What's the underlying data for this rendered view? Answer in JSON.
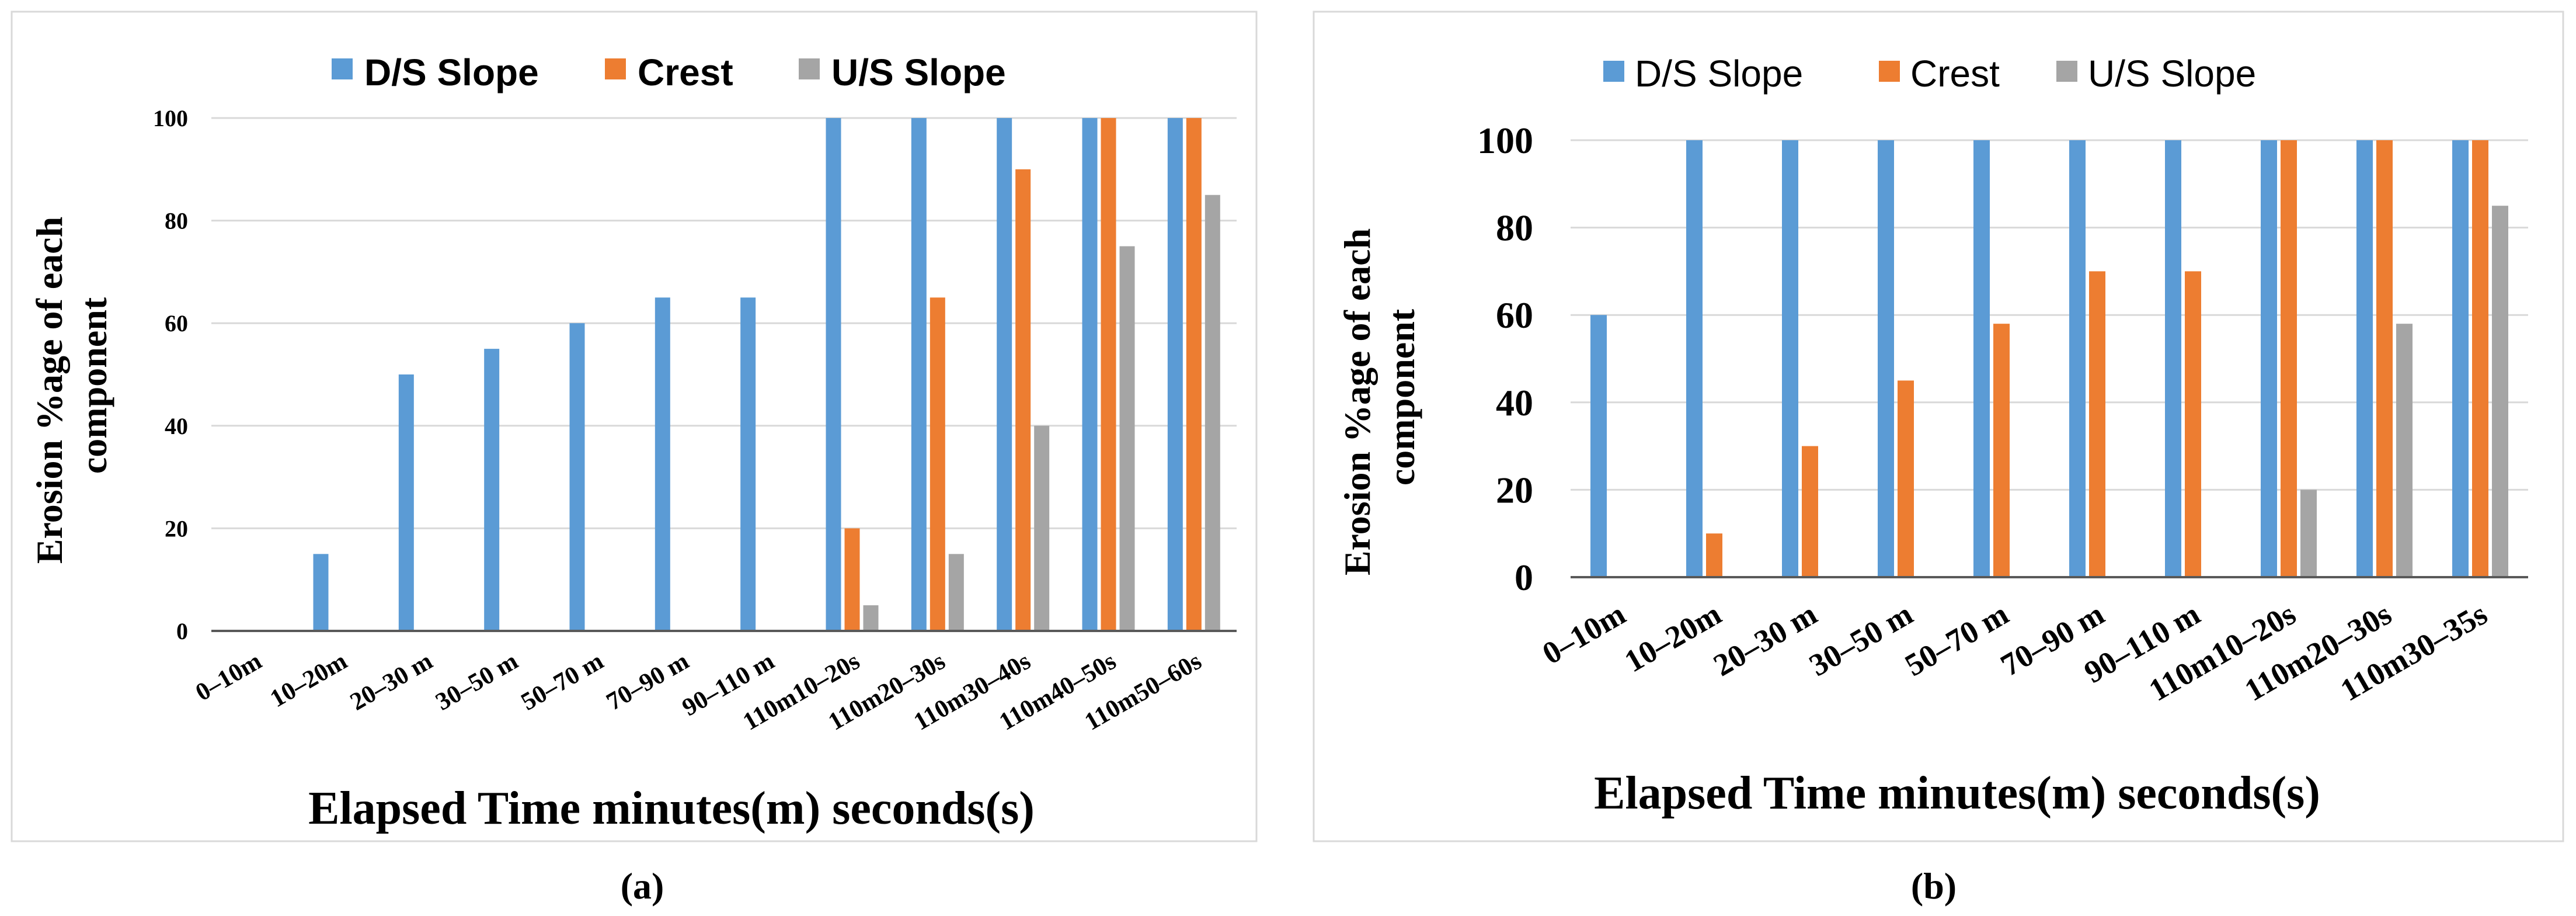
{
  "chart_data": [
    {
      "panel": "a",
      "type": "bar",
      "caption": "(a)",
      "xlabel": "Elapsed Time minutes(m) seconds(s)",
      "ylabel_lines": [
        "Erosion %age  of each",
        "component"
      ],
      "ylim": [
        0,
        100
      ],
      "yticks": [
        "0",
        "20",
        "40",
        "60",
        "80",
        "100"
      ],
      "grid": true,
      "legend_position": "top-center",
      "categories": [
        "0–10m",
        "10–20m",
        "20–30 m",
        "30–50 m",
        "50–70 m",
        "70–90 m",
        "90–110 m",
        "110m10–20s",
        "110m20–30s",
        "110m30–40s",
        "110m40–50s",
        "110m50–60s"
      ],
      "series": [
        {
          "name": "D/S Slope",
          "color": "#5b9bd5",
          "values": [
            0,
            15,
            50,
            55,
            60,
            65,
            65,
            100,
            100,
            100,
            100,
            100
          ]
        },
        {
          "name": "Crest",
          "color": "#ed7d31",
          "values": [
            0,
            0,
            0,
            0,
            0,
            0,
            0,
            20,
            65,
            90,
            100,
            100
          ]
        },
        {
          "name": "U/S Slope",
          "color": "#a5a5a5",
          "values": [
            0,
            0,
            0,
            0,
            0,
            0,
            0,
            5,
            15,
            40,
            75,
            85
          ]
        }
      ]
    },
    {
      "panel": "b",
      "type": "bar",
      "caption": "(b)",
      "xlabel": "Elapsed Time minutes(m) seconds(s)",
      "ylabel_lines": [
        "Erosion %age of each",
        "component"
      ],
      "ylim": [
        0,
        100
      ],
      "yticks": [
        "0",
        "20",
        "40",
        "60",
        "80",
        "100"
      ],
      "grid": true,
      "legend_position": "top-center",
      "categories": [
        "0–10m",
        "10–20m",
        "20–30 m",
        "30–50 m",
        "50–70 m",
        "70–90 m",
        "90–110 m",
        "110m10–20s",
        "110m20–30s",
        "110m30–35s"
      ],
      "series": [
        {
          "name": "D/S Slope",
          "color": "#5b9bd5",
          "values": [
            60,
            100,
            100,
            100,
            100,
            100,
            100,
            100,
            100,
            100
          ]
        },
        {
          "name": "Crest",
          "color": "#ed7d31",
          "values": [
            0,
            10,
            30,
            45,
            58,
            70,
            70,
            100,
            100,
            100
          ]
        },
        {
          "name": "U/S Slope",
          "color": "#a5a5a5",
          "values": [
            0,
            0,
            0,
            0,
            0,
            0,
            0,
            20,
            58,
            85
          ]
        }
      ]
    }
  ]
}
